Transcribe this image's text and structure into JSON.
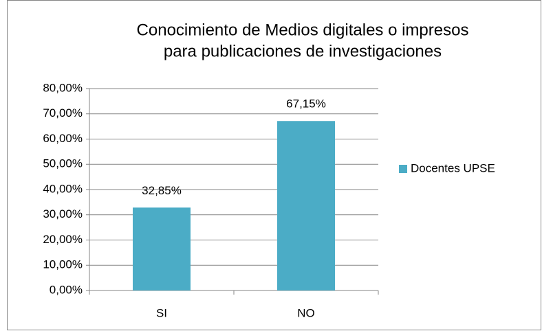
{
  "chart_data": {
    "type": "bar",
    "title": [
      "Conocimiento de Medios digitales o impresos",
      "para publicaciones de investigaciones"
    ],
    "categories": [
      "SI",
      "NO"
    ],
    "series": [
      {
        "name": "Docentes UPSE",
        "color": "#4bacc6",
        "values": [
          32.85,
          67.15
        ],
        "value_labels": [
          "32,85%",
          "67,15%"
        ]
      }
    ],
    "ylim": [
      0,
      80
    ],
    "yticks": [
      {
        "value": 0,
        "label": "0,00%"
      },
      {
        "value": 10,
        "label": "10,00%"
      },
      {
        "value": 20,
        "label": "20,00%"
      },
      {
        "value": 30,
        "label": "30,00%"
      },
      {
        "value": 40,
        "label": "40,00%"
      },
      {
        "value": 50,
        "label": "50,00%"
      },
      {
        "value": 60,
        "label": "60,00%"
      },
      {
        "value": 70,
        "label": "70,00%"
      },
      {
        "value": 80,
        "label": "80,00%"
      }
    ],
    "grid": true,
    "legend": "right"
  }
}
